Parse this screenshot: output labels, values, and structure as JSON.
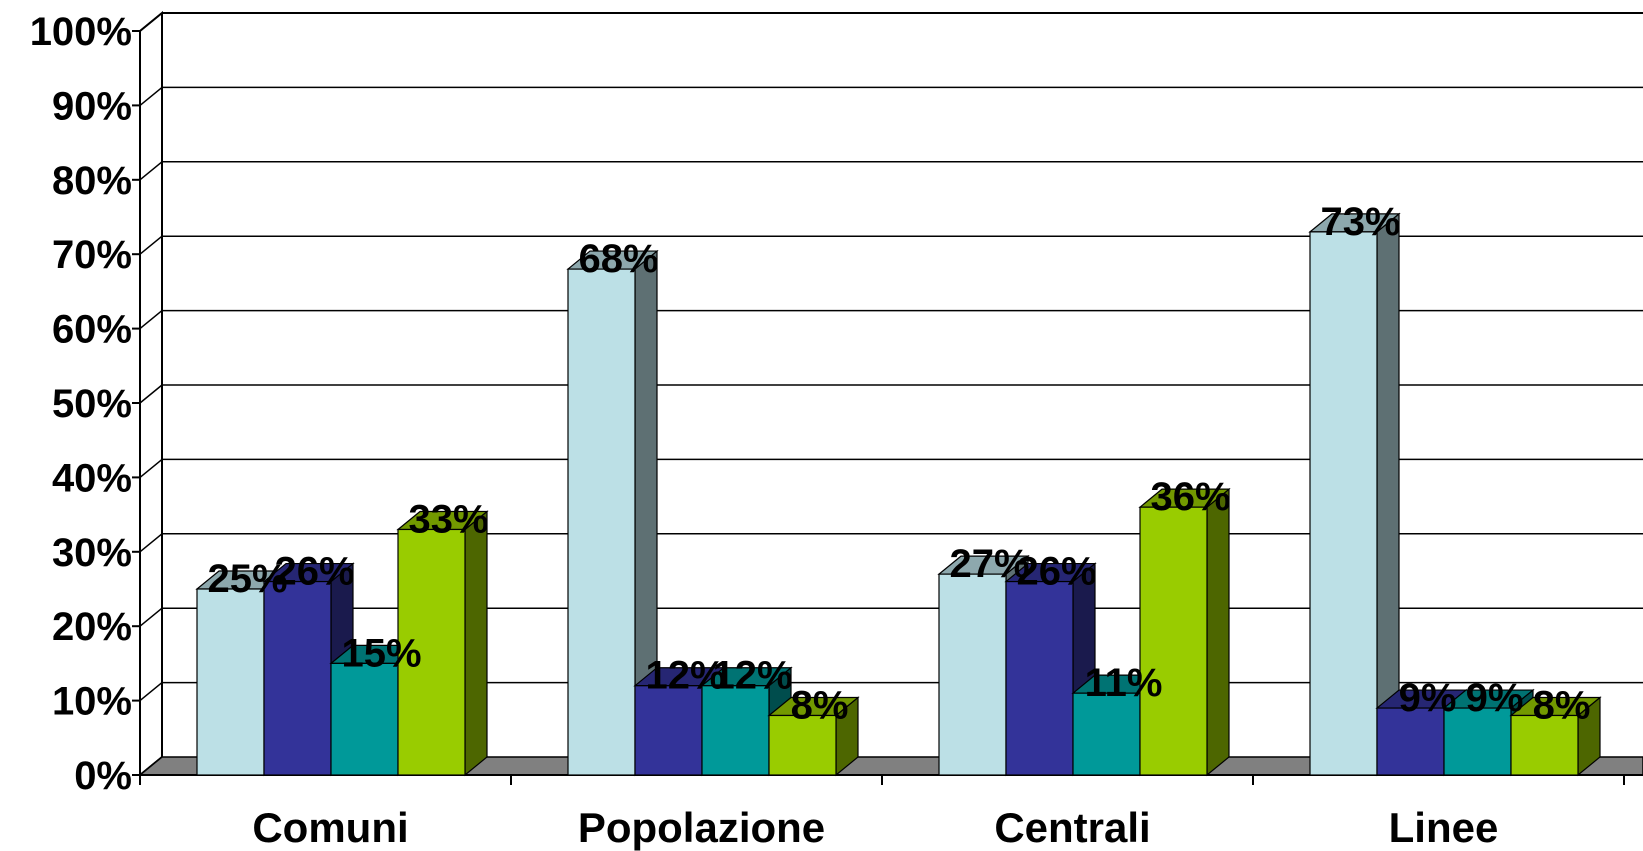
{
  "chart_data": {
    "type": "bar",
    "style": "3d-clustered-column",
    "categories": [
      "Comuni",
      "Popolazione",
      "Centrali",
      "Linee"
    ],
    "series": [
      {
        "color": "#BCE0E6",
        "values": [
          25,
          68,
          27,
          73
        ]
      },
      {
        "color": "#333399",
        "values": [
          26,
          12,
          26,
          9
        ]
      },
      {
        "color": "#009999",
        "values": [
          15,
          12,
          11,
          9
        ]
      },
      {
        "color": "#99CC00",
        "values": [
          33,
          8,
          36,
          8
        ]
      }
    ],
    "data_labels": [
      [
        "25%",
        "68%",
        "27%",
        "73%"
      ],
      [
        "26%",
        "12%",
        "26%",
        "9%"
      ],
      [
        "15%",
        "12%",
        "11%",
        "9%"
      ],
      [
        "33%",
        "8%",
        "36%",
        "8%"
      ]
    ],
    "y_ticks": [
      "0%",
      "10%",
      "20%",
      "30%",
      "40%",
      "50%",
      "60%",
      "70%",
      "80%",
      "90%",
      "100%"
    ],
    "ylim": [
      0,
      100
    ],
    "grid": true,
    "legend": "none",
    "floor_color": "#808080"
  }
}
